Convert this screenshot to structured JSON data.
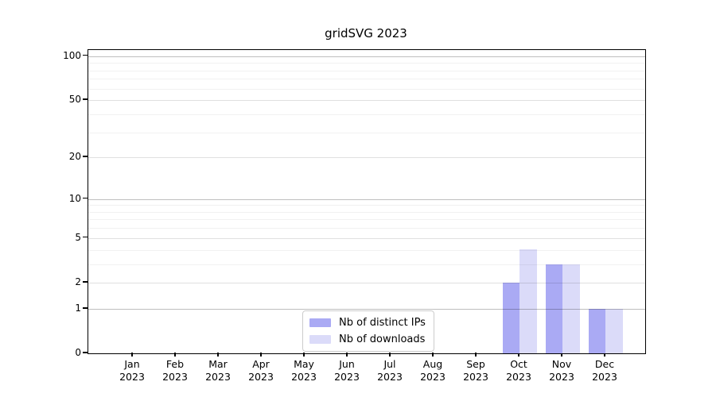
{
  "chart_data": {
    "type": "bar",
    "title": "gridSVG 2023",
    "categories": [
      "Jan",
      "Feb",
      "Mar",
      "Apr",
      "May",
      "Jun",
      "Jul",
      "Aug",
      "Sep",
      "Oct",
      "Nov",
      "Dec"
    ],
    "x_year": "2023",
    "series": [
      {
        "name": "Nb of distinct IPs",
        "color": "#aaaaf4",
        "values": [
          0,
          0,
          0,
          0,
          0,
          0,
          0,
          0,
          0,
          2,
          3,
          1
        ]
      },
      {
        "name": "Nb of downloads",
        "color": "#dbdbf9",
        "values": [
          0,
          0,
          0,
          0,
          0,
          0,
          0,
          0,
          0,
          4,
          3,
          1
        ]
      }
    ],
    "y_ticks": [
      0,
      1,
      2,
      5,
      10,
      20,
      50,
      100
    ],
    "y_major_emphasis_ticks": [
      1,
      10,
      100
    ],
    "y_minor_ticks": [
      3,
      4,
      6,
      7,
      8,
      9,
      30,
      40,
      60,
      70,
      80,
      90
    ],
    "y_scale": "log10(1+x)",
    "ylim": [
      0,
      110
    ],
    "grid": true,
    "legend_position": "bottom-center-inside",
    "axis_color": "#000000",
    "background_color": "#ffffff"
  }
}
